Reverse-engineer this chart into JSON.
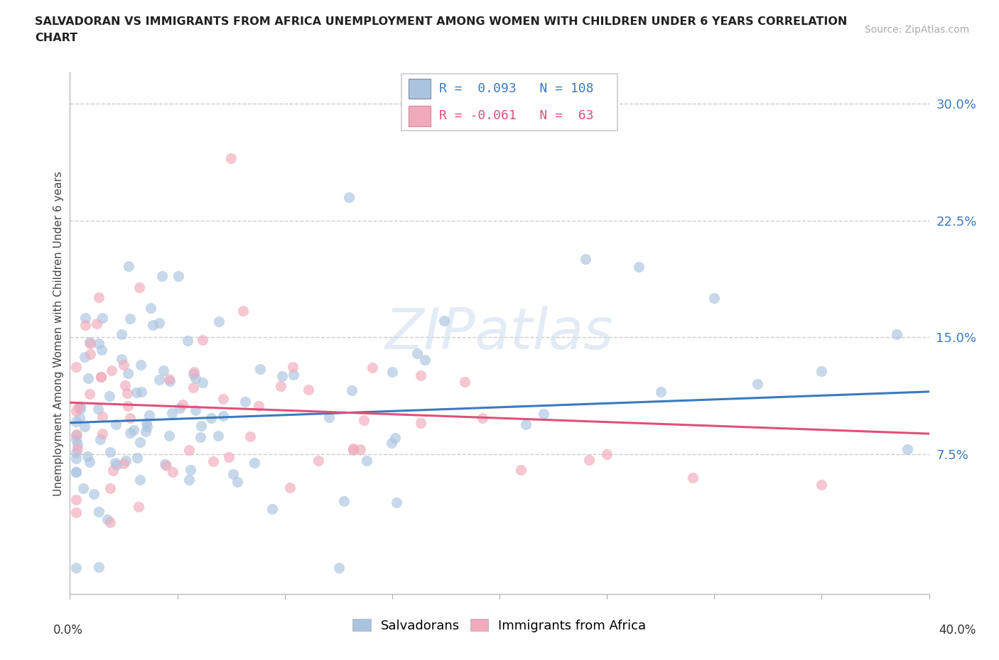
{
  "title_line1": "SALVADORAN VS IMMIGRANTS FROM AFRICA UNEMPLOYMENT AMONG WOMEN WITH CHILDREN UNDER 6 YEARS CORRELATION",
  "title_line2": "CHART",
  "source": "Source: ZipAtlas.com",
  "ylabel": "Unemployment Among Women with Children Under 6 years",
  "xlim": [
    0.0,
    40.0
  ],
  "ylim": [
    -1.0,
    32.0
  ],
  "yticks": [
    7.5,
    15.0,
    22.5,
    30.0
  ],
  "ytick_labels": [
    "7.5%",
    "15.0%",
    "22.5%",
    "30.0%"
  ],
  "grid_color": "#cccccc",
  "background_color": "#ffffff",
  "salvadoran_color": "#aac4e0",
  "africa_color": "#f0aabb",
  "salvadoran_line_color": "#3a7abf",
  "africa_line_color": "#e0507a",
  "legend_R1": "0.093",
  "legend_N1": "108",
  "legend_R2": "-0.061",
  "legend_N2": "63",
  "watermark": "ZIPatlas",
  "marker_size": 120,
  "marker_alpha": 0.65
}
